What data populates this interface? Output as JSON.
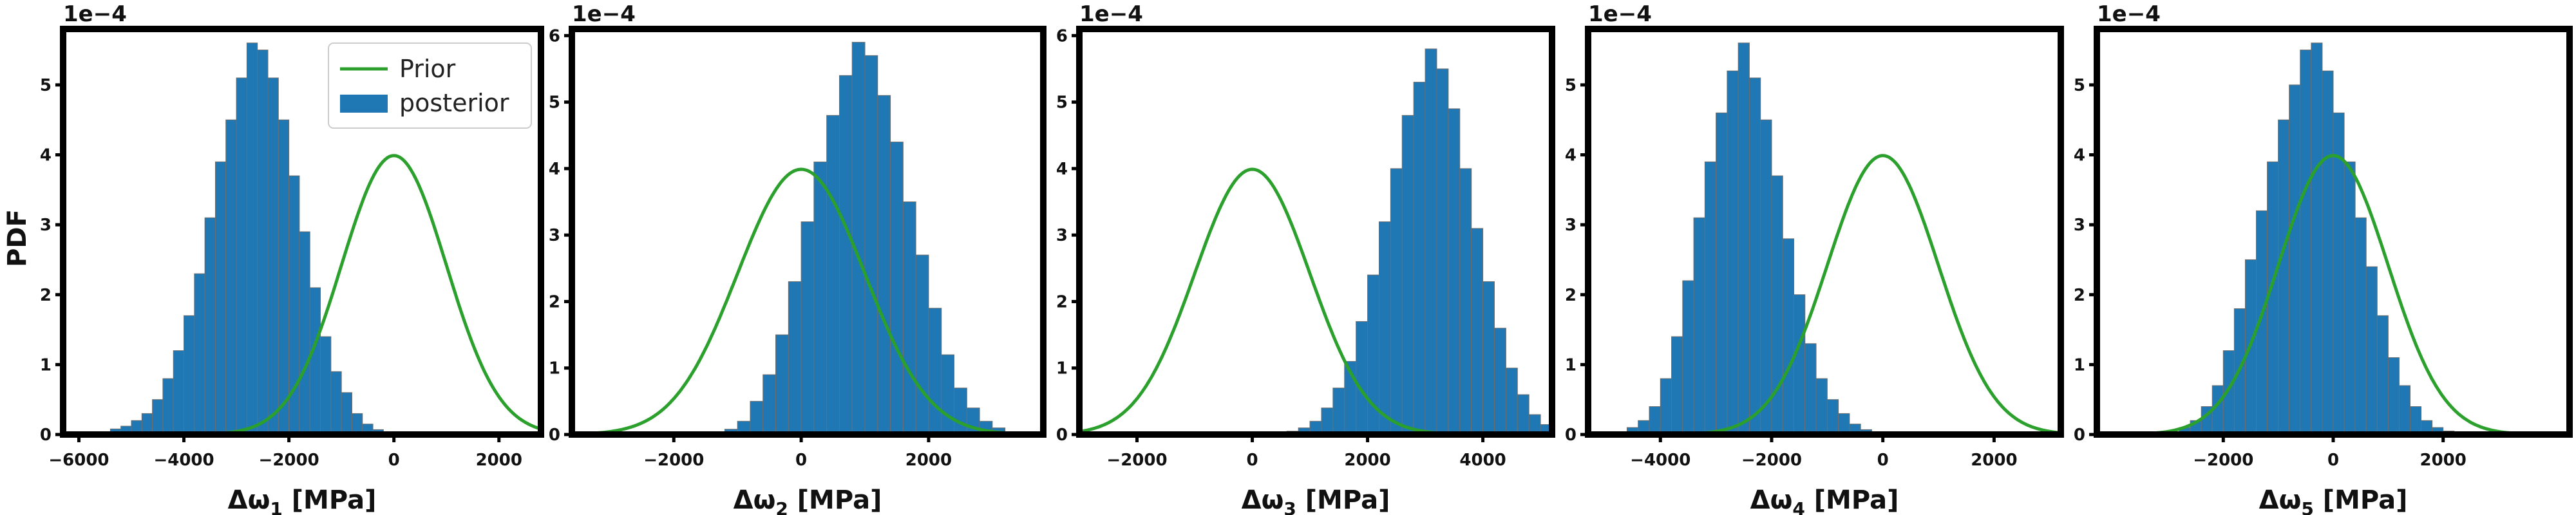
{
  "figure": {
    "ylabel": "PDF",
    "legend": {
      "location": "upper right",
      "entries": [
        "Prior",
        "posterior"
      ]
    },
    "colors": {
      "prior": "#2ca02c",
      "posterior": "#1f77b4",
      "bar_edge": "#6e6e6e",
      "axes": "#000000"
    }
  },
  "chart_data": [
    {
      "type": "bar",
      "title": "",
      "xlabel": "Δω_1 [MPa]",
      "ylabel": "PDF",
      "y_multiplier": "1e−4",
      "xlim": [
        -6300,
        2800
      ],
      "ylim": [
        0,
        0.00058
      ],
      "xticks": [
        -6000,
        -4000,
        -2000,
        0,
        2000
      ],
      "xtick_labels": [
        "−6000",
        "−4000",
        "−2000",
        "0",
        "2000"
      ],
      "yticks": [
        0,
        0.0001,
        0.0002,
        0.0003,
        0.0004,
        0.0005
      ],
      "ytick_labels": [
        "0",
        "1",
        "2",
        "3",
        "4",
        "5"
      ],
      "legend": true,
      "series": [
        {
          "name": "posterior",
          "type": "histogram",
          "bin_start": -5800,
          "bin_width": 200,
          "values": [
            2e-06,
            4e-06,
            8e-06,
            1.2e-05,
            2e-05,
            3e-05,
            5e-05,
            8e-05,
            0.00012,
            0.00017,
            0.00023,
            0.00031,
            0.00039,
            0.00045,
            0.00051,
            0.00056,
            0.00055,
            0.00051,
            0.00045,
            0.00037,
            0.00029,
            0.00021,
            0.00014,
            9e-05,
            6e-05,
            3e-05,
            1.5e-05,
            7e-06,
            3e-06
          ]
        },
        {
          "name": "Prior",
          "type": "normal_pdf",
          "mean": 0,
          "std": 1000
        }
      ]
    },
    {
      "type": "bar",
      "title": "",
      "xlabel": "Δω_2 [MPa]",
      "ylabel": "",
      "y_multiplier": "1e−4",
      "xlim": [
        -3600,
        3800
      ],
      "ylim": [
        0,
        0.00061
      ],
      "xticks": [
        -2000,
        0,
        2000
      ],
      "xtick_labels": [
        "−2000",
        "0",
        "2000"
      ],
      "yticks": [
        0,
        0.0001,
        0.0002,
        0.0003,
        0.0004,
        0.0005,
        0.0006
      ],
      "ytick_labels": [
        "0",
        "1",
        "2",
        "3",
        "4",
        "5",
        "6"
      ],
      "legend": false,
      "series": [
        {
          "name": "posterior",
          "type": "histogram",
          "bin_start": -1200,
          "bin_width": 200,
          "values": [
            8e-06,
            2e-05,
            5e-05,
            9e-05,
            0.00015,
            0.00023,
            0.00032,
            0.00041,
            0.00048,
            0.00054,
            0.00059,
            0.00057,
            0.00051,
            0.00044,
            0.00035,
            0.00027,
            0.00019,
            0.00012,
            7e-05,
            4e-05,
            2e-05,
            1e-05
          ]
        },
        {
          "name": "Prior",
          "type": "normal_pdf",
          "mean": 0,
          "std": 1000
        }
      ]
    },
    {
      "type": "bar",
      "title": "",
      "xlabel": "Δω_3 [MPa]",
      "ylabel": "",
      "y_multiplier": "1e−4",
      "xlim": [
        -3000,
        5200
      ],
      "ylim": [
        0,
        0.00061
      ],
      "xticks": [
        -2000,
        0,
        2000,
        4000
      ],
      "xtick_labels": [
        "−2000",
        "0",
        "2000",
        "4000"
      ],
      "yticks": [
        0,
        0.0001,
        0.0002,
        0.0003,
        0.0004,
        0.0005,
        0.0006
      ],
      "ytick_labels": [
        "0",
        "1",
        "2",
        "3",
        "4",
        "5",
        "6"
      ],
      "legend": false,
      "series": [
        {
          "name": "posterior",
          "type": "histogram",
          "bin_start": 600,
          "bin_width": 200,
          "values": [
            5e-06,
            1e-05,
            2e-05,
            4e-05,
            7e-05,
            0.00011,
            0.00017,
            0.00024,
            0.00032,
            0.0004,
            0.00048,
            0.00053,
            0.00058,
            0.00055,
            0.00049,
            0.0004,
            0.00031,
            0.00023,
            0.00016,
            0.0001,
            6e-05,
            3e-05,
            1.5e-05,
            8e-06
          ]
        },
        {
          "name": "Prior",
          "type": "normal_pdf",
          "mean": 0,
          "std": 1000
        }
      ]
    },
    {
      "type": "bar",
      "title": "",
      "xlabel": "Δω_4 [MPa]",
      "ylabel": "",
      "y_multiplier": "1e−4",
      "xlim": [
        -5300,
        3200
      ],
      "ylim": [
        0,
        0.00058
      ],
      "xticks": [
        -4000,
        -2000,
        0,
        2000
      ],
      "xtick_labels": [
        "−4000",
        "−2000",
        "0",
        "2000"
      ],
      "yticks": [
        0,
        0.0001,
        0.0002,
        0.0003,
        0.0004,
        0.0005
      ],
      "ytick_labels": [
        "0",
        "1",
        "2",
        "3",
        "4",
        "5"
      ],
      "legend": false,
      "series": [
        {
          "name": "posterior",
          "type": "histogram",
          "bin_start": -4800,
          "bin_width": 200,
          "values": [
            4e-06,
            1e-05,
            2e-05,
            4e-05,
            8e-05,
            0.00014,
            0.00022,
            0.00031,
            0.00039,
            0.00046,
            0.00052,
            0.00056,
            0.00051,
            0.00045,
            0.00037,
            0.00028,
            0.0002,
            0.00013,
            8e-05,
            5e-05,
            3e-05,
            1.5e-05,
            7e-06,
            3e-06
          ]
        },
        {
          "name": "Prior",
          "type": "normal_pdf",
          "mean": 0,
          "std": 1000
        }
      ]
    },
    {
      "type": "bar",
      "title": "",
      "xlabel": "Δω_5 [MPa]",
      "ylabel": "",
      "y_multiplier": "1e−4",
      "xlim": [
        -4300,
        4300
      ],
      "ylim": [
        0,
        0.00058
      ],
      "xticks": [
        -2000,
        0,
        2000
      ],
      "xtick_labels": [
        "−2000",
        "0",
        "2000"
      ],
      "yticks": [
        0,
        0.0001,
        0.0002,
        0.0003,
        0.0004,
        0.0005
      ],
      "ytick_labels": [
        "0",
        "1",
        "2",
        "3",
        "4",
        "5"
      ],
      "legend": false,
      "series": [
        {
          "name": "posterior",
          "type": "histogram",
          "bin_start": -3000,
          "bin_width": 200,
          "values": [
            4e-06,
            1e-05,
            2e-05,
            4e-05,
            7e-05,
            0.00012,
            0.00018,
            0.00025,
            0.00032,
            0.00039,
            0.00045,
            0.0005,
            0.00055,
            0.00056,
            0.00052,
            0.00046,
            0.00039,
            0.00031,
            0.00024,
            0.00017,
            0.00011,
            7e-05,
            4e-05,
            2e-05,
            1e-05,
            5e-06
          ]
        },
        {
          "name": "Prior",
          "type": "normal_pdf",
          "mean": 0,
          "std": 1000
        }
      ]
    }
  ]
}
